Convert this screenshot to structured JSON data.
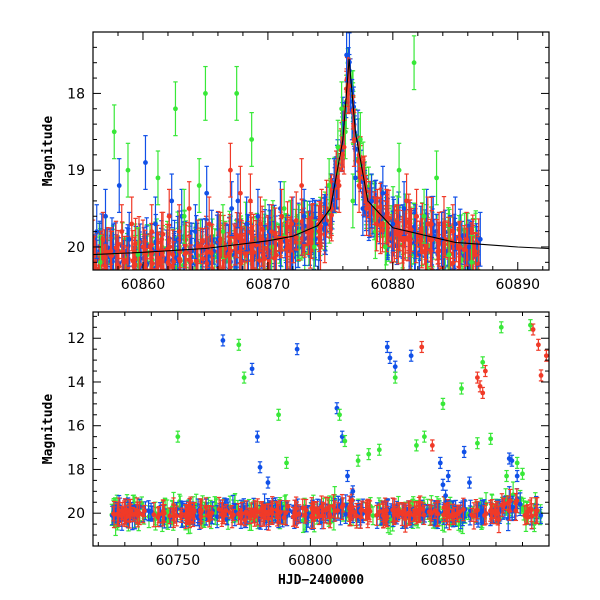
{
  "chart_data": [
    {
      "type": "scatter",
      "xlabel": "",
      "ylabel": "Magnitude",
      "xlim": [
        60856,
        60892.5
      ],
      "ylim": [
        20.3,
        17.2
      ],
      "y_inverted": true,
      "xticks": [
        60860,
        60870,
        60880,
        60890
      ],
      "yticks": [
        18,
        19,
        20
      ],
      "grid": false,
      "has_model_curve": true,
      "colors": {
        "blue": "#1050e8",
        "green": "#38e838",
        "red": "#f03a28",
        "model": "#000000"
      },
      "model_curve": {
        "x": [
          60856,
          60860,
          60865,
          60870,
          60872,
          60874,
          60875,
          60876,
          60876.5,
          60877,
          60878,
          60880,
          60885,
          60890,
          60892.5
        ],
        "y": [
          20.1,
          20.07,
          20.02,
          19.92,
          19.86,
          19.72,
          19.5,
          18.6,
          17.55,
          18.5,
          19.4,
          19.75,
          19.94,
          20.0,
          20.02
        ]
      },
      "series": [
        {
          "color": "blue",
          "x": [
            60856.3,
            60857.0,
            60858.1,
            60858.9,
            60860.2,
            60861.0,
            60862.3,
            60863.1,
            60864.2,
            60865.1,
            60866.0,
            60867.1,
            60867.6,
            60868.3,
            60869.2,
            60870.1,
            60871.0,
            60872.0,
            60872.9,
            60873.8,
            60874.6,
            60875.3,
            60876.0,
            60876.3,
            60876.6,
            60877.0,
            60877.6,
            60878.3,
            60879.2,
            60880.0,
            60880.9,
            60881.8,
            60882.7,
            60883.9,
            60885.0,
            60886.1,
            60887.0
          ],
          "y": [
            19.8,
            19.6,
            19.2,
            19.9,
            18.9,
            19.7,
            19.4,
            19.6,
            19.8,
            19.3,
            19.9,
            19.5,
            19.4,
            19.7,
            19.6,
            19.8,
            19.5,
            19.7,
            19.6,
            19.9,
            19.7,
            19.2,
            18.4,
            17.5,
            17.9,
            19.1,
            19.5,
            19.4,
            19.3,
            19.7,
            19.5,
            19.8,
            19.6,
            19.9,
            19.7,
            20.0,
            19.9
          ]
        },
        {
          "color": "green",
          "x": [
            60856.6,
            60857.7,
            60858.8,
            60859.6,
            60861.2,
            60862.6,
            60863.3,
            60864.5,
            60865.0,
            60866.4,
            60867.5,
            60868.7,
            60870.3,
            60871.3,
            60872.5,
            60873.7,
            60874.9,
            60875.6,
            60875.9,
            60876.2,
            60876.8,
            60877.4,
            60878.6,
            60879.4,
            60880.5,
            60881.7,
            60882.5,
            60883.5,
            60884.5,
            60886.3
          ],
          "y": [
            20.2,
            18.5,
            19.0,
            20.1,
            19.1,
            18.2,
            19.6,
            19.2,
            18.0,
            19.8,
            18.0,
            18.6,
            20.0,
            19.5,
            19.8,
            20.0,
            19.2,
            18.7,
            18.2,
            18.5,
            19.4,
            18.6,
            19.8,
            20.0,
            19.0,
            17.6,
            19.6,
            19.1,
            20.1,
            20.2
          ]
        },
        {
          "color": "red",
          "x": [
            60856.0,
            60856.8,
            60857.4,
            60858.3,
            60859.1,
            60860.0,
            60860.7,
            60861.5,
            60862.1,
            60862.9,
            60863.7,
            60864.4,
            60865.3,
            60866.2,
            60867.0,
            60867.8,
            60868.6,
            60869.4,
            60870.3,
            60871.1,
            60871.9,
            60872.7,
            60873.5,
            60874.3,
            60875.1,
            60875.7,
            60876.1,
            60876.5,
            60876.9,
            60877.3,
            60877.9,
            60878.7,
            60879.5,
            60880.3,
            60881.1,
            60881.9,
            60882.8,
            60883.7,
            60884.8,
            60885.9
          ],
          "y": [
            20.0,
            19.9,
            20.1,
            19.8,
            19.7,
            20.0,
            19.8,
            19.9,
            19.6,
            19.8,
            19.5,
            20.0,
            19.7,
            19.9,
            19.0,
            19.3,
            19.4,
            19.7,
            19.8,
            19.6,
            19.7,
            19.2,
            19.8,
            19.6,
            19.5,
            19.2,
            18.7,
            17.9,
            18.6,
            19.2,
            19.5,
            19.7,
            19.6,
            19.8,
            19.4,
            19.6,
            19.7,
            19.9,
            19.8,
            19.9
          ]
        }
      ]
    },
    {
      "type": "scatter",
      "xlabel": "HJD−2400000",
      "ylabel": "Magnitude",
      "xlim": [
        60718,
        60890
      ],
      "ylim": [
        21.5,
        10.8
      ],
      "y_inverted": true,
      "xticks": [
        60750,
        60800,
        60850
      ],
      "yticks": [
        12,
        14,
        16,
        18,
        20
      ],
      "grid": false,
      "colors": {
        "blue": "#1050e8",
        "green": "#38e838",
        "red": "#f03a28"
      },
      "band": {
        "x_start": 60725,
        "x_end": 60887,
        "baseline_mag": 20.0,
        "scatter_mag": 0.35
      },
      "series": [
        {
          "color": "blue",
          "x": [
            60767,
            60778,
            60780,
            60781,
            60784,
            60795,
            60810,
            60812,
            60814,
            60816,
            60829,
            60830,
            60832,
            60838,
            60849,
            60850,
            60851,
            60852,
            60858,
            60860,
            60875,
            60876,
            60878
          ],
          "y": [
            12.1,
            13.4,
            16.5,
            17.9,
            18.6,
            12.5,
            15.2,
            16.5,
            18.3,
            19.0,
            12.4,
            12.9,
            13.3,
            12.8,
            17.7,
            18.7,
            19.2,
            18.3,
            17.2,
            18.6,
            17.5,
            17.6,
            18.3
          ]
        },
        {
          "color": "green",
          "x": [
            60750,
            60773,
            60775,
            60788,
            60791,
            60811,
            60813,
            60818,
            60822,
            60826,
            60832,
            60840,
            60843,
            60850,
            60857,
            60863,
            60865,
            60868,
            60872,
            60874,
            60878,
            60880,
            60883
          ],
          "y": [
            16.5,
            12.3,
            13.8,
            15.5,
            17.7,
            15.5,
            16.7,
            17.6,
            17.3,
            17.1,
            13.8,
            16.9,
            16.5,
            15.0,
            14.3,
            16.8,
            13.1,
            16.6,
            11.5,
            18.3,
            17.7,
            18.2,
            11.4
          ]
        },
        {
          "color": "red",
          "x": [
            60842,
            60846,
            60863,
            60864,
            60865,
            60866,
            60884,
            60886,
            60887,
            60889
          ],
          "y": [
            12.4,
            16.9,
            13.8,
            14.2,
            14.5,
            13.5,
            11.6,
            12.3,
            13.7,
            12.8
          ]
        }
      ]
    }
  ]
}
